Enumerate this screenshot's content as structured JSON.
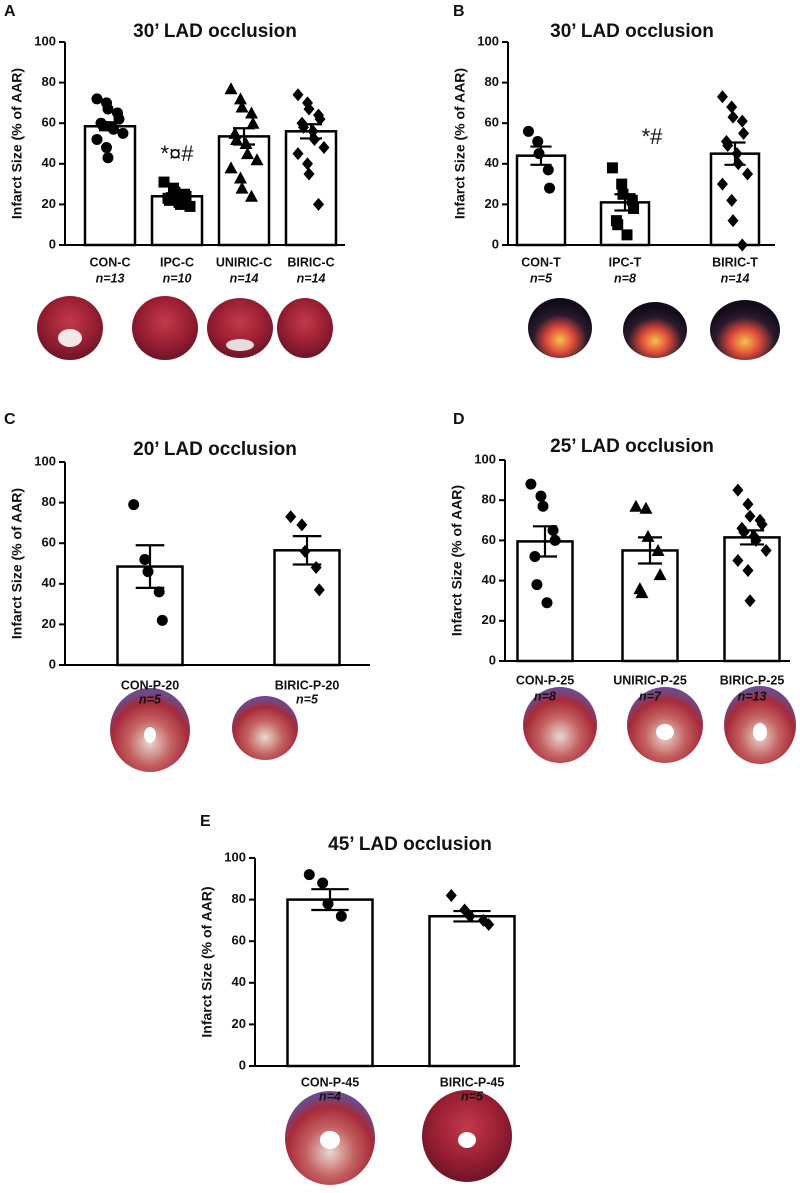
{
  "chart_data": [
    {
      "type": "bar",
      "panel": "A",
      "title": "30’ LAD occlusion",
      "ylabel": "Infarct Size (% of AAR)",
      "categories": [
        "CON-C",
        "IPC-C",
        "UNIRIC-C",
        "BIRIC-C"
      ],
      "n_labels": [
        "n=13",
        "n=10",
        "n=14",
        "n=14"
      ],
      "values": [
        58.5,
        24,
        53.5,
        56
      ],
      "errors": [
        2,
        1.5,
        4,
        3.5
      ],
      "points": [
        [
          72,
          70,
          67,
          65,
          62,
          60,
          59,
          58,
          57,
          55,
          52,
          48,
          43
        ],
        [
          31,
          28,
          26,
          25,
          24,
          23,
          22,
          21,
          20,
          19
        ],
        [
          77,
          72,
          68,
          65,
          60,
          55,
          52,
          50,
          45,
          42,
          38,
          33,
          28,
          24
        ],
        [
          74,
          70,
          67,
          64,
          62,
          60,
          58,
          56,
          52,
          48,
          45,
          40,
          35,
          20
        ]
      ],
      "markers": [
        "circle",
        "square",
        "triangle",
        "diamond"
      ],
      "annotations": [
        "*¤#"
      ],
      "color": "#ffffff",
      "ylim": [
        0,
        100
      ],
      "yticks": [
        0,
        20,
        40,
        60,
        80,
        100
      ]
    },
    {
      "type": "bar",
      "panel": "B",
      "title": "30’ LAD occlusion",
      "ylabel": "Infarct Size (% of AAR)",
      "categories": [
        "CON-T",
        "IPC-T",
        "BIRIC-T"
      ],
      "n_labels": [
        "n=5",
        "n=8",
        "n=14"
      ],
      "values": [
        44,
        21,
        45
      ],
      "errors": [
        4.5,
        4,
        5.5
      ],
      "points": [
        [
          56,
          51,
          45,
          37,
          28
        ],
        [
          38,
          30,
          25,
          22,
          18,
          12,
          10,
          5
        ],
        [
          73,
          68,
          63,
          61,
          55,
          51,
          49,
          45,
          40,
          35,
          30,
          22,
          12,
          0
        ]
      ],
      "markers": [
        "circle",
        "square",
        "diamond"
      ],
      "annotations": [
        "*#"
      ],
      "color": "#ffffff",
      "ylim": [
        0,
        100
      ],
      "yticks": [
        0,
        20,
        40,
        60,
        80,
        100
      ]
    },
    {
      "type": "bar",
      "panel": "C",
      "title": "20’ LAD occlusion",
      "ylabel": "Infarct Size (% of AAR)",
      "categories": [
        "CON-P-20",
        "BIRIC-P-20"
      ],
      "n_labels": [
        "n=5",
        "n=5"
      ],
      "values": [
        48.5,
        56.5
      ],
      "errors": [
        10.5,
        7
      ],
      "points": [
        [
          79,
          52,
          46,
          36,
          22
        ],
        [
          73,
          69,
          56,
          48,
          37
        ]
      ],
      "markers": [
        "circle",
        "diamond"
      ],
      "color": "#ffffff",
      "ylim": [
        0,
        100
      ],
      "yticks": [
        0,
        20,
        40,
        60,
        80,
        100
      ]
    },
    {
      "type": "bar",
      "panel": "D",
      "title": "25’ LAD occlusion",
      "ylabel": "Infarct Size (% of AAR)",
      "categories": [
        "CON-P-25",
        "UNIRIC-P-25",
        "BIRIC-P-25"
      ],
      "n_labels": [
        "n=8",
        "n=7",
        "n=13"
      ],
      "values": [
        59.5,
        55,
        61.5
      ],
      "errors": [
        7.5,
        6.5,
        3.5
      ],
      "points": [
        [
          88,
          82,
          77,
          65,
          60,
          52,
          38,
          29
        ],
        [
          77,
          76,
          62,
          55,
          43,
          36,
          34
        ],
        [
          85,
          78,
          72,
          70,
          68,
          66,
          64,
          62,
          60,
          55,
          50,
          45,
          30
        ]
      ],
      "markers": [
        "circle",
        "triangle",
        "diamond"
      ],
      "color": "#ffffff",
      "ylim": [
        0,
        100
      ],
      "yticks": [
        0,
        20,
        40,
        60,
        80,
        100
      ]
    },
    {
      "type": "bar",
      "panel": "E",
      "title": "45’ LAD occlusion",
      "ylabel": "Infarct Size (% of AAR)",
      "categories": [
        "CON-P-45",
        "BIRIC-P-45"
      ],
      "n_labels": [
        "n=4",
        "n=5"
      ],
      "values": [
        80,
        72
      ],
      "errors": [
        5,
        2.5
      ],
      "points": [
        [
          92,
          88,
          78,
          72
        ],
        [
          82,
          75,
          72,
          70,
          68
        ]
      ],
      "markers": [
        "circle",
        "diamond"
      ],
      "color": "#ffffff",
      "ylim": [
        0,
        100
      ],
      "yticks": [
        0,
        20,
        40,
        60,
        80,
        100
      ]
    }
  ]
}
